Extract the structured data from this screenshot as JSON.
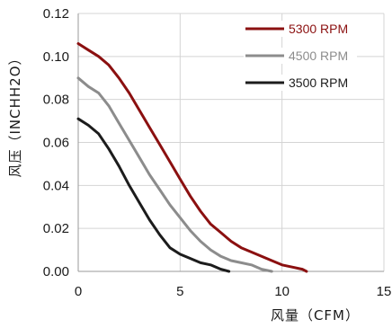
{
  "chart_data": {
    "type": "line",
    "title": "",
    "xlabel": "风量（CFM）",
    "ylabel": "风压（INCHH2O）",
    "xlim": [
      0,
      15
    ],
    "ylim": [
      0,
      0.12
    ],
    "x_ticks": [
      "0",
      "5",
      "10",
      "15"
    ],
    "y_ticks": [
      "0.00",
      "0.02",
      "0.04",
      "0.06",
      "0.08",
      "0.10",
      "0.12"
    ],
    "grid": true,
    "legend_position": "top-right",
    "series": [
      {
        "name": "5300 RPM",
        "color": "#8b1010",
        "x": [
          0,
          0.5,
          1.0,
          1.5,
          2.0,
          2.5,
          3.0,
          3.5,
          4.0,
          4.5,
          5.0,
          5.5,
          6.0,
          6.5,
          7.0,
          7.5,
          8.0,
          8.5,
          9.0,
          9.5,
          10.0,
          10.5,
          11.0,
          11.2
        ],
        "y": [
          0.106,
          0.103,
          0.1,
          0.096,
          0.09,
          0.083,
          0.075,
          0.067,
          0.059,
          0.051,
          0.043,
          0.035,
          0.028,
          0.022,
          0.018,
          0.014,
          0.011,
          0.009,
          0.007,
          0.005,
          0.003,
          0.002,
          0.001,
          0.0
        ]
      },
      {
        "name": "4500 RPM",
        "color": "#8c8c8c",
        "x": [
          0,
          0.5,
          1.0,
          1.5,
          2.0,
          2.5,
          3.0,
          3.5,
          4.0,
          4.5,
          5.0,
          5.5,
          6.0,
          6.5,
          7.0,
          7.5,
          8.0,
          8.5,
          9.0,
          9.5
        ],
        "y": [
          0.09,
          0.086,
          0.083,
          0.077,
          0.069,
          0.061,
          0.053,
          0.045,
          0.038,
          0.031,
          0.025,
          0.019,
          0.014,
          0.01,
          0.007,
          0.005,
          0.004,
          0.003,
          0.001,
          0.0
        ]
      },
      {
        "name": "3500 RPM",
        "color": "#1c1c1c",
        "x": [
          0,
          0.5,
          1.0,
          1.5,
          2.0,
          2.5,
          3.0,
          3.5,
          4.0,
          4.5,
          5.0,
          5.5,
          6.0,
          6.5,
          7.0,
          7.4
        ],
        "y": [
          0.071,
          0.068,
          0.064,
          0.057,
          0.049,
          0.04,
          0.032,
          0.024,
          0.017,
          0.011,
          0.008,
          0.006,
          0.004,
          0.003,
          0.001,
          0.0
        ]
      }
    ]
  }
}
